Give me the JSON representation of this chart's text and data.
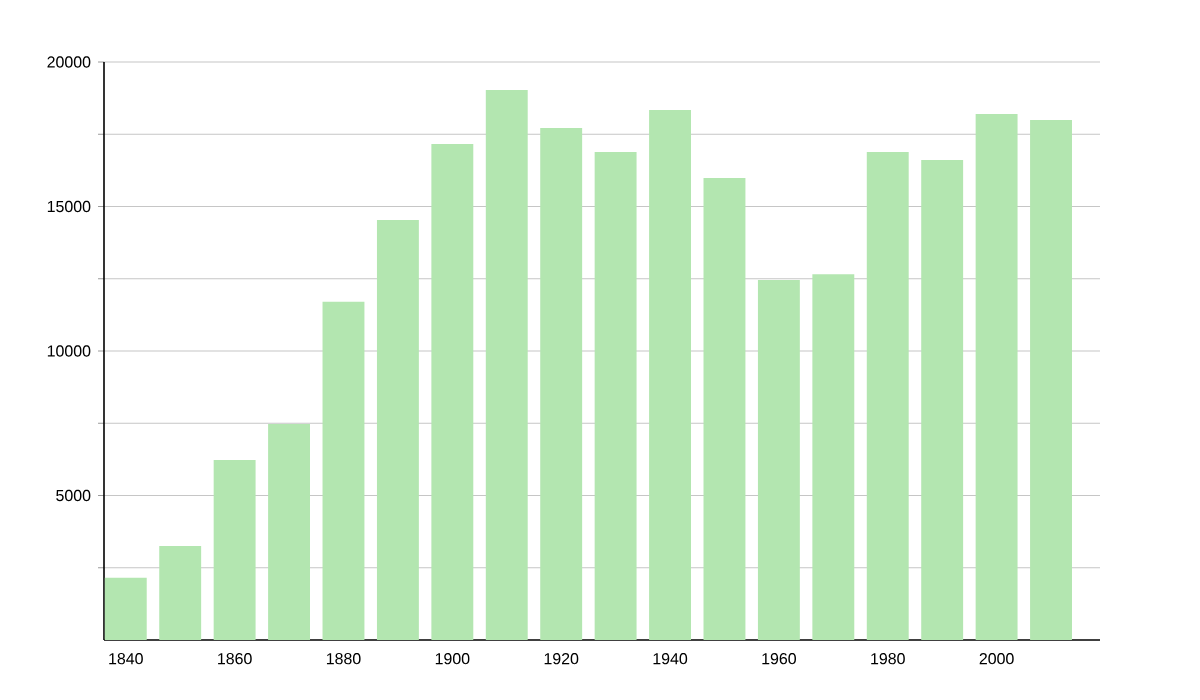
{
  "chart_data": {
    "type": "bar",
    "x": [
      1840,
      1850,
      1860,
      1870,
      1880,
      1890,
      1900,
      1910,
      1920,
      1930,
      1940,
      1950,
      1960,
      1970,
      1980,
      1990,
      2000,
      2010
    ],
    "values": [
      2150,
      3250,
      6230,
      7470,
      11700,
      14530,
      17160,
      19030,
      17720,
      16890,
      18340,
      15990,
      12460,
      12660,
      16890,
      16610,
      18200,
      17990
    ],
    "color": "#b3e6b0",
    "xlim": [
      1836,
      2019
    ],
    "xticks": [
      1840,
      1860,
      1880,
      1900,
      1920,
      1940,
      1960,
      1980,
      2000
    ],
    "ylim": [
      0,
      20000
    ],
    "yticks": [
      {
        "value": 2500,
        "label": null
      },
      5000,
      {
        "value": 7500,
        "label": null
      },
      10000,
      {
        "value": 12500,
        "label": null
      },
      15000,
      {
        "value": 17500,
        "label": null
      },
      20000
    ],
    "grid": "y"
  }
}
